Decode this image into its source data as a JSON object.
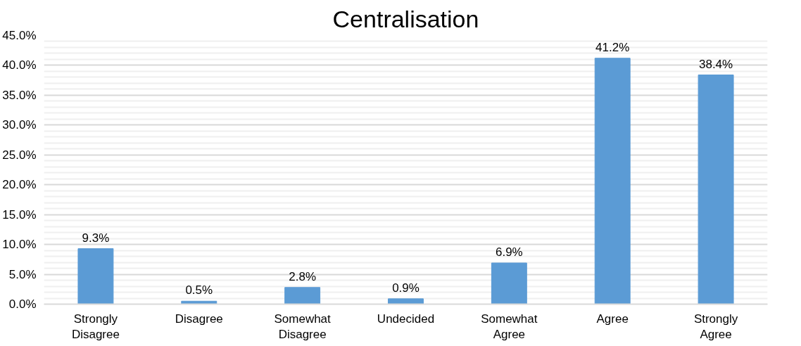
{
  "chart_data": {
    "type": "bar",
    "title": "Centralisation",
    "categories": [
      "Strongly Disagree",
      "Disagree",
      "Somewhat Disagree",
      "Undecided",
      "Somewhat Agree",
      "Agree",
      "Strongly Agree"
    ],
    "values": [
      9.3,
      0.5,
      2.8,
      0.9,
      6.9,
      41.2,
      38.4
    ],
    "value_labels": [
      "9.3%",
      "0.5%",
      "2.8%",
      "0.9%",
      "6.9%",
      "41.2%",
      "38.4%"
    ],
    "color": "#5b9bd5",
    "ylim": [
      0,
      45
    ],
    "yticks": [
      {
        "value": 0,
        "label": "0.0%"
      },
      {
        "value": 5,
        "label": "5.0%"
      },
      {
        "value": 10,
        "label": "10.0%"
      },
      {
        "value": 15,
        "label": "15.0%"
      },
      {
        "value": 20,
        "label": "20.0%"
      },
      {
        "value": 25,
        "label": "25.0%"
      },
      {
        "value": 30,
        "label": "30.0%"
      },
      {
        "value": 35,
        "label": "35.0%"
      },
      {
        "value": 40,
        "label": "40.0%"
      },
      {
        "value": 45,
        "label": "45.0%"
      }
    ],
    "grid": "y"
  }
}
